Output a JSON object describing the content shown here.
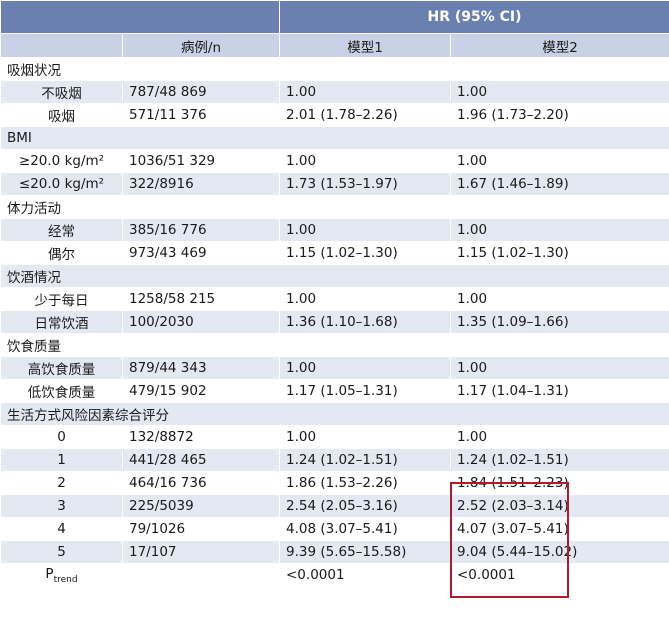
{
  "header": {
    "hr_label": "HR (95% CI)",
    "col_cases": "病例/n",
    "col_model1": "模型1",
    "col_model2": "模型2"
  },
  "rows": [
    {
      "type": "group",
      "label": "吸烟状况"
    },
    {
      "type": "item",
      "label": "不吸烟",
      "cases": "787/48 869",
      "m1": "1.00",
      "m2": "1.00"
    },
    {
      "type": "item",
      "label": "吸烟",
      "cases": "571/11 376",
      "m1": "2.01 (1.78–2.26)",
      "m2": "1.96 (1.73–2.20)"
    },
    {
      "type": "group",
      "label": "BMI"
    },
    {
      "type": "item",
      "label": "≥20.0 kg/m²",
      "cases": "1036/51 329",
      "m1": "1.00",
      "m2": "1.00"
    },
    {
      "type": "item",
      "label": "≤20.0 kg/m²",
      "cases": "322/8916",
      "m1": "1.73 (1.53–1.97)",
      "m2": "1.67 (1.46–1.89)"
    },
    {
      "type": "group",
      "label": "体力活动"
    },
    {
      "type": "item",
      "label": "经常",
      "cases": "385/16 776",
      "m1": "1.00",
      "m2": "1.00"
    },
    {
      "type": "item",
      "label": "偶尔",
      "cases": "973/43 469",
      "m1": "1.15 (1.02–1.30)",
      "m2": "1.15 (1.02–1.30)"
    },
    {
      "type": "group",
      "label": "饮酒情况"
    },
    {
      "type": "item",
      "label": "少于每日",
      "cases": "1258/58 215",
      "m1": "1.00",
      "m2": "1.00"
    },
    {
      "type": "item",
      "label": "日常饮酒",
      "cases": "100/2030",
      "m1": "1.36 (1.10–1.68)",
      "m2": "1.35 (1.09–1.66)"
    },
    {
      "type": "group",
      "label": "饮食质量"
    },
    {
      "type": "item",
      "label": "高饮食质量",
      "cases": "879/44 343",
      "m1": "1.00",
      "m2": "1.00"
    },
    {
      "type": "item",
      "label": "低饮食质量",
      "cases": "479/15 902",
      "m1": "1.17 (1.05–1.31)",
      "m2": "1.17 (1.04–1.31)"
    },
    {
      "type": "group",
      "label": "生活方式风险因素综合评分"
    },
    {
      "type": "item",
      "label": "0",
      "cases": "132/8872",
      "m1": "1.00",
      "m2": "1.00"
    },
    {
      "type": "item",
      "label": "1",
      "cases": "441/28 465",
      "m1": "1.24 (1.02–1.51)",
      "m2": "1.24 (1.02–1.51)"
    },
    {
      "type": "item",
      "label": "2",
      "cases": "464/16 736",
      "m1": "1.86 (1.53–2.26)",
      "m2": "1.84 (1.51–2.23)"
    },
    {
      "type": "item",
      "label": "3",
      "cases": "225/5039",
      "m1": "2.54 (2.05–3.16)",
      "m2": "2.52 (2.03–3.14)"
    },
    {
      "type": "item",
      "label": "4",
      "cases": "79/1026",
      "m1": "4.08 (3.07–5.41)",
      "m2": "4.07 (3.07–5.41)"
    },
    {
      "type": "item",
      "label": "5",
      "cases": "17/107",
      "m1": "9.39 (5.65–15.58)",
      "m2": "9.04 (5.44–15.02)"
    }
  ],
  "ptrend": {
    "label_main": "P",
    "label_sub": "trend",
    "m1": "<0.0001",
    "m2": "<0.0001"
  },
  "highlight_color": "#b01c2c"
}
